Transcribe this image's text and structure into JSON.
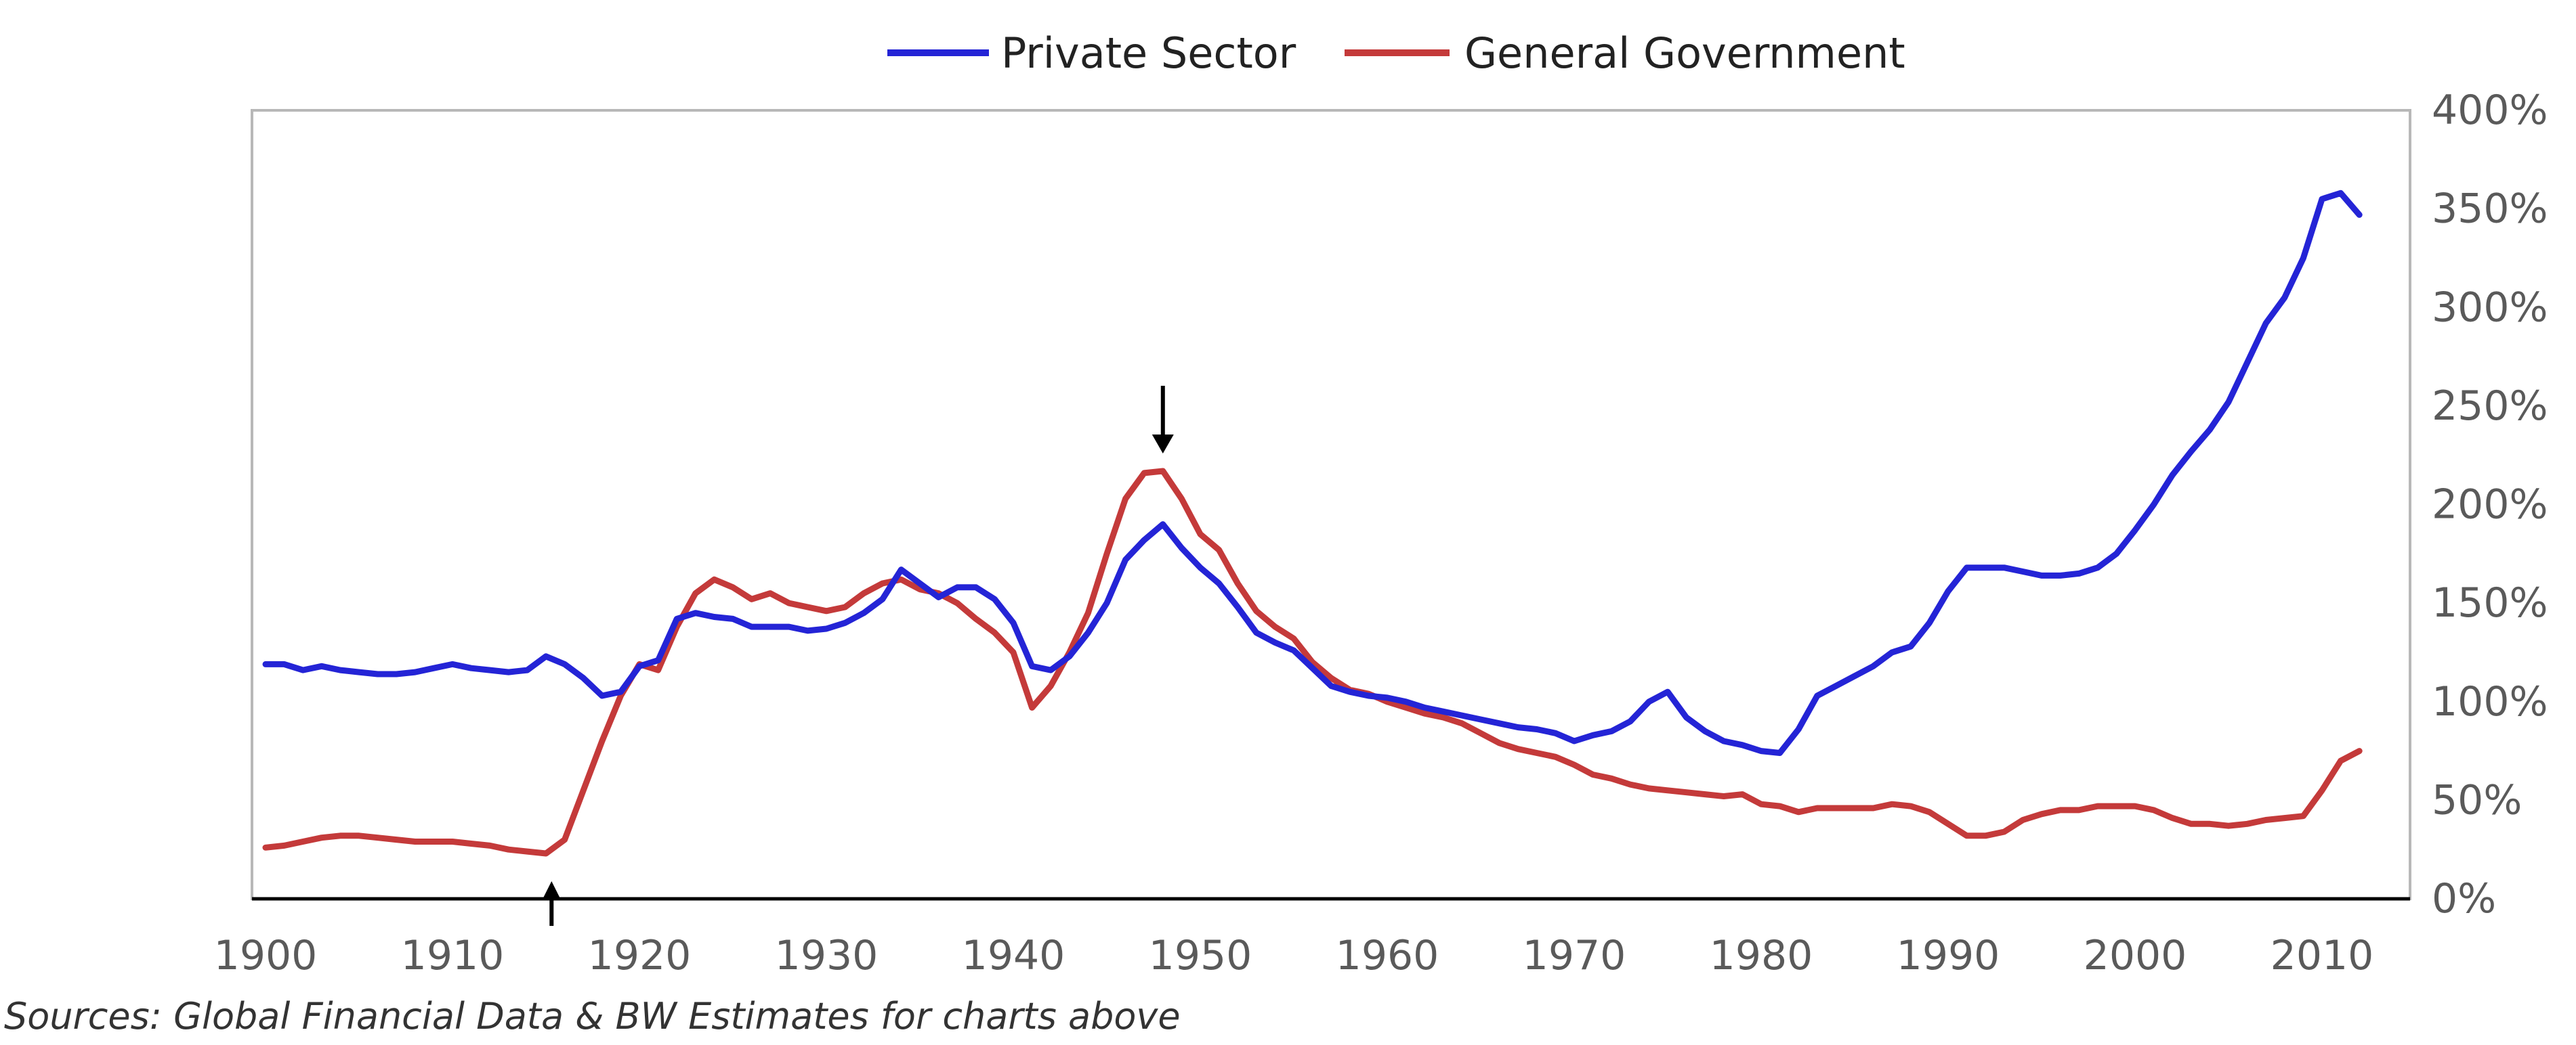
{
  "chart_data": {
    "type": "line",
    "title": "",
    "xlabel": "",
    "ylabel": "",
    "xlim": [
      1900,
      2012
    ],
    "ylim": [
      0,
      400
    ],
    "x_ticks": [
      "1900",
      "1910",
      "1920",
      "1930",
      "1940",
      "1950",
      "1960",
      "1970",
      "1980",
      "1990",
      "2000",
      "2010"
    ],
    "y_ticks": [
      "0%",
      "50%",
      "100%",
      "150%",
      "200%",
      "250%",
      "300%",
      "350%",
      "400%"
    ],
    "legend_position": "top-center",
    "grid": false,
    "series": [
      {
        "name": "Private Sector",
        "color": "#2424d6",
        "points": [
          [
            1900,
            119
          ],
          [
            1901,
            119
          ],
          [
            1902,
            116
          ],
          [
            1903,
            118
          ],
          [
            1904,
            116
          ],
          [
            1905,
            115
          ],
          [
            1906,
            114
          ],
          [
            1907,
            114
          ],
          [
            1908,
            115
          ],
          [
            1909,
            117
          ],
          [
            1910,
            119
          ],
          [
            1911,
            117
          ],
          [
            1912,
            116
          ],
          [
            1913,
            115
          ],
          [
            1914,
            116
          ],
          [
            1915,
            123
          ],
          [
            1916,
            119
          ],
          [
            1917,
            112
          ],
          [
            1918,
            103
          ],
          [
            1919,
            105
          ],
          [
            1920,
            118
          ],
          [
            1921,
            121
          ],
          [
            1922,
            142
          ],
          [
            1923,
            145
          ],
          [
            1924,
            143
          ],
          [
            1925,
            142
          ],
          [
            1926,
            138
          ],
          [
            1927,
            138
          ],
          [
            1928,
            138
          ],
          [
            1929,
            136
          ],
          [
            1930,
            137
          ],
          [
            1931,
            140
          ],
          [
            1932,
            145
          ],
          [
            1933,
            152
          ],
          [
            1934,
            167
          ],
          [
            1935,
            160
          ],
          [
            1936,
            153
          ],
          [
            1937,
            158
          ],
          [
            1938,
            158
          ],
          [
            1939,
            152
          ],
          [
            1940,
            140
          ],
          [
            1941,
            118
          ],
          [
            1942,
            116
          ],
          [
            1943,
            123
          ],
          [
            1944,
            135
          ],
          [
            1945,
            150
          ],
          [
            1946,
            172
          ],
          [
            1947,
            182
          ],
          [
            1948,
            190
          ],
          [
            1949,
            178
          ],
          [
            1950,
            168
          ],
          [
            1951,
            160
          ],
          [
            1952,
            148
          ],
          [
            1953,
            135
          ],
          [
            1954,
            130
          ],
          [
            1955,
            126
          ],
          [
            1956,
            117
          ],
          [
            1957,
            108
          ],
          [
            1958,
            105
          ],
          [
            1959,
            103
          ],
          [
            1960,
            102
          ],
          [
            1961,
            100
          ],
          [
            1962,
            97
          ],
          [
            1963,
            95
          ],
          [
            1964,
            93
          ],
          [
            1965,
            91
          ],
          [
            1966,
            89
          ],
          [
            1967,
            87
          ],
          [
            1968,
            86
          ],
          [
            1969,
            84
          ],
          [
            1970,
            80
          ],
          [
            1971,
            83
          ],
          [
            1972,
            85
          ],
          [
            1973,
            90
          ],
          [
            1974,
            100
          ],
          [
            1975,
            105
          ],
          [
            1976,
            92
          ],
          [
            1977,
            85
          ],
          [
            1978,
            80
          ],
          [
            1979,
            78
          ],
          [
            1980,
            75
          ],
          [
            1981,
            74
          ],
          [
            1982,
            86
          ],
          [
            1983,
            103
          ],
          [
            1984,
            108
          ],
          [
            1985,
            113
          ],
          [
            1986,
            118
          ],
          [
            1987,
            125
          ],
          [
            1988,
            128
          ],
          [
            1989,
            140
          ],
          [
            1990,
            156
          ],
          [
            1991,
            168
          ],
          [
            1992,
            168
          ],
          [
            1993,
            168
          ],
          [
            1994,
            166
          ],
          [
            1995,
            164
          ],
          [
            1996,
            164
          ],
          [
            1997,
            165
          ],
          [
            1998,
            168
          ],
          [
            1999,
            175
          ],
          [
            2000,
            187
          ],
          [
            2001,
            200
          ],
          [
            2002,
            215
          ],
          [
            2003,
            227
          ],
          [
            2004,
            238
          ],
          [
            2005,
            252
          ],
          [
            2006,
            272
          ],
          [
            2007,
            292
          ],
          [
            2008,
            305
          ],
          [
            2009,
            325
          ],
          [
            2010,
            355
          ],
          [
            2011,
            358
          ],
          [
            2012,
            347
          ]
        ]
      },
      {
        "name": "General Government",
        "color": "#c43a3a",
        "points": [
          [
            1900,
            26
          ],
          [
            1901,
            27
          ],
          [
            1902,
            29
          ],
          [
            1903,
            31
          ],
          [
            1904,
            32
          ],
          [
            1905,
            32
          ],
          [
            1906,
            31
          ],
          [
            1907,
            30
          ],
          [
            1908,
            29
          ],
          [
            1909,
            29
          ],
          [
            1910,
            29
          ],
          [
            1911,
            28
          ],
          [
            1912,
            27
          ],
          [
            1913,
            25
          ],
          [
            1914,
            24
          ],
          [
            1915,
            23
          ],
          [
            1916,
            30
          ],
          [
            1917,
            55
          ],
          [
            1918,
            80
          ],
          [
            1919,
            103
          ],
          [
            1920,
            119
          ],
          [
            1921,
            116
          ],
          [
            1922,
            138
          ],
          [
            1923,
            155
          ],
          [
            1924,
            162
          ],
          [
            1925,
            158
          ],
          [
            1926,
            152
          ],
          [
            1927,
            155
          ],
          [
            1928,
            150
          ],
          [
            1929,
            148
          ],
          [
            1930,
            146
          ],
          [
            1931,
            148
          ],
          [
            1932,
            155
          ],
          [
            1933,
            160
          ],
          [
            1934,
            162
          ],
          [
            1935,
            157
          ],
          [
            1936,
            155
          ],
          [
            1937,
            150
          ],
          [
            1938,
            142
          ],
          [
            1939,
            135
          ],
          [
            1940,
            125
          ],
          [
            1941,
            97
          ],
          [
            1942,
            108
          ],
          [
            1943,
            125
          ],
          [
            1944,
            145
          ],
          [
            1945,
            175
          ],
          [
            1946,
            203
          ],
          [
            1947,
            216
          ],
          [
            1948,
            217
          ],
          [
            1949,
            203
          ],
          [
            1950,
            185
          ],
          [
            1951,
            177
          ],
          [
            1952,
            160
          ],
          [
            1953,
            146
          ],
          [
            1954,
            138
          ],
          [
            1955,
            132
          ],
          [
            1956,
            120
          ],
          [
            1957,
            112
          ],
          [
            1958,
            106
          ],
          [
            1959,
            104
          ],
          [
            1960,
            100
          ],
          [
            1961,
            97
          ],
          [
            1962,
            94
          ],
          [
            1963,
            92
          ],
          [
            1964,
            89
          ],
          [
            1965,
            84
          ],
          [
            1966,
            79
          ],
          [
            1967,
            76
          ],
          [
            1968,
            74
          ],
          [
            1969,
            72
          ],
          [
            1970,
            68
          ],
          [
            1971,
            63
          ],
          [
            1972,
            61
          ],
          [
            1973,
            58
          ],
          [
            1974,
            56
          ],
          [
            1975,
            55
          ],
          [
            1976,
            54
          ],
          [
            1977,
            53
          ],
          [
            1978,
            52
          ],
          [
            1979,
            53
          ],
          [
            1980,
            48
          ],
          [
            1981,
            47
          ],
          [
            1982,
            44
          ],
          [
            1983,
            46
          ],
          [
            1984,
            46
          ],
          [
            1985,
            46
          ],
          [
            1986,
            46
          ],
          [
            1987,
            48
          ],
          [
            1988,
            47
          ],
          [
            1989,
            44
          ],
          [
            1990,
            38
          ],
          [
            1991,
            32
          ],
          [
            1992,
            32
          ],
          [
            1993,
            34
          ],
          [
            1994,
            40
          ],
          [
            1995,
            43
          ],
          [
            1996,
            45
          ],
          [
            1997,
            45
          ],
          [
            1998,
            47
          ],
          [
            1999,
            47
          ],
          [
            2000,
            47
          ],
          [
            2001,
            45
          ],
          [
            2002,
            41
          ],
          [
            2003,
            38
          ],
          [
            2004,
            38
          ],
          [
            2005,
            37
          ],
          [
            2006,
            38
          ],
          [
            2007,
            40
          ],
          [
            2008,
            41
          ],
          [
            2009,
            42
          ],
          [
            2010,
            55
          ],
          [
            2011,
            70
          ],
          [
            2012,
            75
          ]
        ]
      }
    ],
    "annotations": [
      {
        "type": "arrow-up",
        "x": 1915.3,
        "y": 23
      },
      {
        "type": "arrow-down",
        "x": 1948,
        "y": 217
      }
    ]
  },
  "legend": {
    "private_label": "Private Sector",
    "government_label": "General Government"
  },
  "source_note": "Sources: Global Financial Data & BW Estimates for charts above"
}
